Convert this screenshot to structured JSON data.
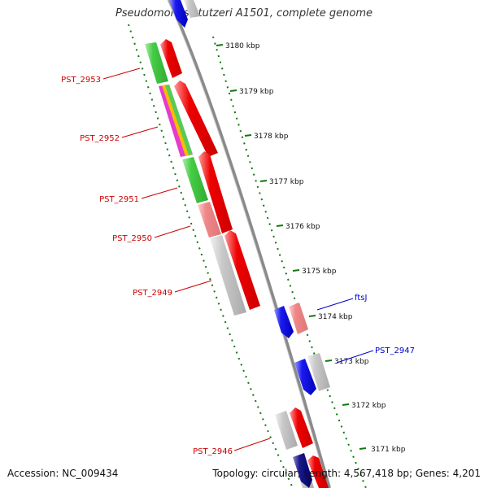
{
  "title": "Pseudomonas stutzeri A1501, complete genome",
  "accession": "Accession: NC_009434",
  "summary": "Topology: circular; Length: 4,567,418 bp; Genes: 4,201",
  "ticks": [
    "3180 kbp",
    "3179 kbp",
    "3178 kbp",
    "3177 kbp",
    "3176 kbp",
    "3175 kbp",
    "3174 kbp",
    "3173 kbp",
    "3172 kbp",
    "3171 kbp"
  ],
  "gene_labels": [
    {
      "text": "PST_2953",
      "color": "#cc0000"
    },
    {
      "text": "PST_2952",
      "color": "#cc0000"
    },
    {
      "text": "PST_2951",
      "color": "#cc0000"
    },
    {
      "text": "PST_2950",
      "color": "#cc0000"
    },
    {
      "text": "PST_2949",
      "color": "#cc0000"
    },
    {
      "text": "PST_2946",
      "color": "#cc0000"
    },
    {
      "text": "ftsJ",
      "color": "#0000cc"
    },
    {
      "text": "PST_2947",
      "color": "#0000cc"
    }
  ],
  "colors": {
    "forward": "#ee0000",
    "reverse": "#1a1aee",
    "cog_green": "#44cc44",
    "cog_pink": "#ee8888",
    "cog_grey": "#c8c8c8",
    "backbone": "#8a8a8a",
    "scale_dots": "#117711"
  }
}
